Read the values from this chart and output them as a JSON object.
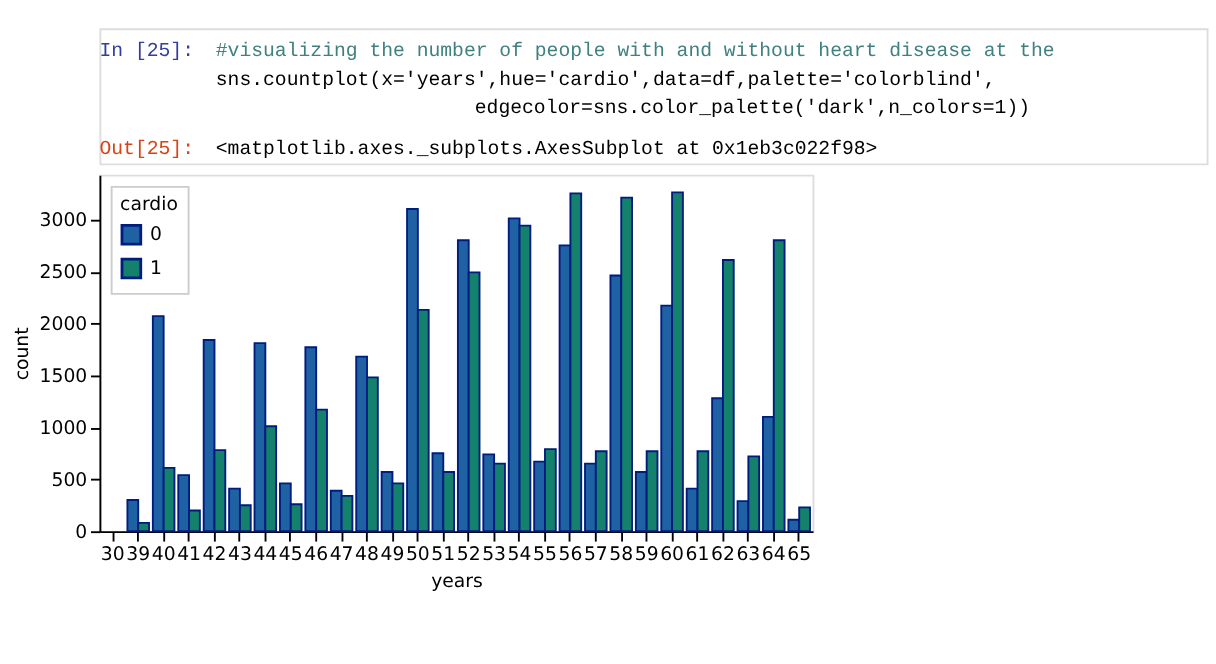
{
  "chart_data": {
    "type": "bar",
    "xlabel": "years",
    "ylabel": "count",
    "legend_title": "cardio",
    "legend": "top left",
    "grid": false,
    "categories": [
      "30",
      "39",
      "40",
      "41",
      "42",
      "43",
      "44",
      "45",
      "46",
      "47",
      "48",
      "49",
      "50",
      "51",
      "52",
      "53",
      "54",
      "55",
      "56",
      "57",
      "58",
      "59",
      "60",
      "61",
      "62",
      "63",
      "64",
      "65"
    ],
    "series": [
      {
        "name": "0",
        "color": "#1f62a3",
        "values": [
          null,
          300,
          2070,
          540,
          1840,
          410,
          1810,
          460,
          1770,
          390,
          1680,
          570,
          3100,
          750,
          2800,
          740,
          3010,
          670,
          2750,
          650,
          2460,
          570,
          2170,
          410,
          1280,
          290,
          1100,
          110
        ]
      },
      {
        "name": "1",
        "color": "#13816b",
        "values": [
          null,
          80,
          610,
          200,
          780,
          250,
          1010,
          260,
          1170,
          340,
          1480,
          460,
          2130,
          570,
          2490,
          650,
          2940,
          790,
          3250,
          770,
          3210,
          770,
          3260,
          770,
          2610,
          720,
          2800,
          230
        ]
      }
    ],
    "ylim": [
      0,
      3430
    ],
    "yticks": [
      0,
      500,
      1000,
      1500,
      2000,
      2500,
      3000
    ],
    "annotations": [
      "In [25]:",
      "#visualizing the number of people with and without heart disease at the",
      "sns.countplot(x='years',hue='cardio',data=df,palette='colorblind',",
      "edgecolor=sns.color_palette('dark',n_colors=1))",
      "Out[25]:",
      "<matplotlib.axes._subplots.AxesSubplot at 0x1eb3c022f98>"
    ]
  }
}
